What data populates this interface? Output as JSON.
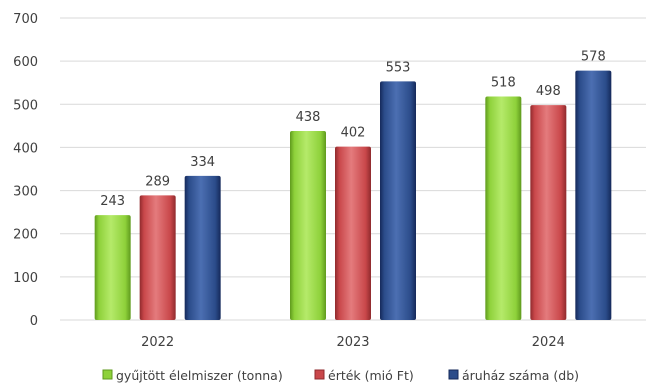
{
  "chart_data": {
    "type": "bar",
    "categories": [
      "2022",
      "2023",
      "2024"
    ],
    "series": [
      {
        "name": "gyűjtött élelmiszer (tonna)",
        "values": [
          243,
          438,
          518
        ],
        "color": "#8ed13a",
        "dark": "#5f9a1d",
        "light": "#b5ea6a"
      },
      {
        "name": "érték (mió Ft)",
        "values": [
          289,
          402,
          498
        ],
        "color": "#c9474a",
        "dark": "#8f2a2d",
        "light": "#e47b7d"
      },
      {
        "name": "áruház száma (db)",
        "values": [
          334,
          553,
          578
        ],
        "color": "#2b4c8a",
        "dark": "#15295a",
        "light": "#4c6fb2"
      }
    ],
    "y_ticks": [
      "0",
      "100",
      "200",
      "300",
      "400",
      "500",
      "600",
      "700"
    ],
    "ylim": [
      0,
      700
    ],
    "grid": true,
    "legend_position": "bottom"
  }
}
